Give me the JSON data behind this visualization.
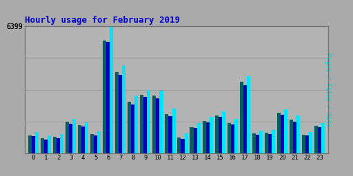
{
  "title": "Hourly usage for February 2019",
  "hours": [
    0,
    1,
    2,
    3,
    4,
    5,
    6,
    7,
    8,
    9,
    10,
    11,
    12,
    13,
    14,
    15,
    16,
    17,
    18,
    19,
    20,
    21,
    22,
    23
  ],
  "pages": [
    900,
    750,
    830,
    1580,
    1420,
    960,
    5700,
    4100,
    2600,
    2950,
    2900,
    1980,
    780,
    1320,
    1620,
    1900,
    1520,
    3600,
    980,
    1020,
    2050,
    1700,
    940,
    1380
  ],
  "files": [
    850,
    700,
    770,
    1500,
    1350,
    900,
    5600,
    3950,
    2450,
    2820,
    2780,
    1860,
    720,
    1260,
    1540,
    1820,
    1440,
    3430,
    920,
    960,
    1920,
    1600,
    880,
    1300
  ],
  "hits": [
    1050,
    900,
    970,
    1720,
    1560,
    1100,
    6399,
    4450,
    2900,
    3200,
    3150,
    2250,
    980,
    1520,
    1820,
    2100,
    1720,
    3880,
    1120,
    1170,
    2200,
    1900,
    1070,
    1520
  ],
  "color_pages": "#006060",
  "color_files": "#0000bb",
  "color_hits": "#00e5ff",
  "bg_color": "#aaaaaa",
  "plot_bg": "#b3b3b3",
  "title_color": "#0000cc",
  "ymax": 6399,
  "bar_width": 0.28,
  "grid_color": "#999999",
  "right_label_pages": "Pages",
  "right_label_files": " Files",
  "right_label_hits": " Hits",
  "right_color_pages": "#006060",
  "right_color_files": "#0000bb",
  "right_color_hits": "#00cccc"
}
